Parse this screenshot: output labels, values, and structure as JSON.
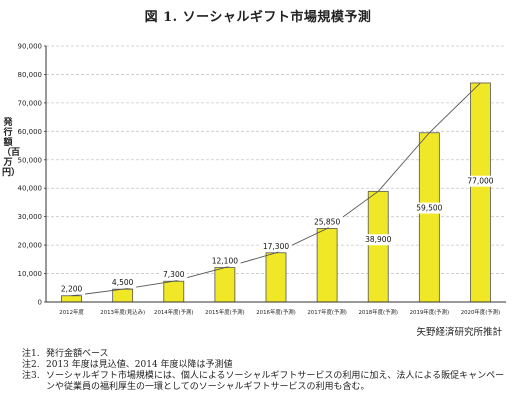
{
  "figure": {
    "title": "図 1. ソーシャルギフト市場規模予測",
    "source": "矢野経済研究所推計"
  },
  "chart_data": {
    "type": "bar",
    "title": "図 1. ソーシャルギフト市場規模予測",
    "ylabel": "発行額（百万円）",
    "xlabel": "",
    "categories": [
      "2012年度",
      "2013年度(見込み)",
      "2014年度(予測)",
      "2015年度(予測)",
      "2016年度(予測)",
      "2017年度(予測)",
      "2018年度(予測)",
      "2019年度(予測)",
      "2020年度(予測)"
    ],
    "values": [
      2200,
      4500,
      7300,
      12100,
      17300,
      25850,
      38900,
      59500,
      77000
    ],
    "data_labels": [
      "2,200",
      "4,500",
      "7,300",
      "12,100",
      "17,300",
      "25,850",
      "38,900",
      "59,500",
      "77,000"
    ],
    "yticks": [
      0,
      10000,
      20000,
      30000,
      40000,
      50000,
      60000,
      70000,
      80000,
      90000
    ],
    "ytick_labels": [
      "0",
      "10,000",
      "20,000",
      "30,000",
      "40,000",
      "50,000",
      "60,000",
      "70,000",
      "80,000",
      "90,000"
    ],
    "ylim": [
      0,
      90000
    ],
    "grid": "horizontal dashed",
    "trend_line": true,
    "legend": "none",
    "colors": {
      "bar": "#f0e826",
      "bar_stroke": "#555555",
      "line": "#555555",
      "grid": "#c8c8c8"
    }
  },
  "notes": [
    {
      "id": "注1.",
      "text": "発行金額ベース"
    },
    {
      "id": "注2.",
      "text": "2013 年度は見込値、2014 年度以降は予測値"
    },
    {
      "id": "注3.",
      "text": "ソーシャルギフト市場規模には、個人によるソーシャルギフトサービスの利用に加え、法人による販促キャンペーンや従業員の福利厚生の一環としてのソーシャルギフトサービスの利用も含む。"
    }
  ]
}
